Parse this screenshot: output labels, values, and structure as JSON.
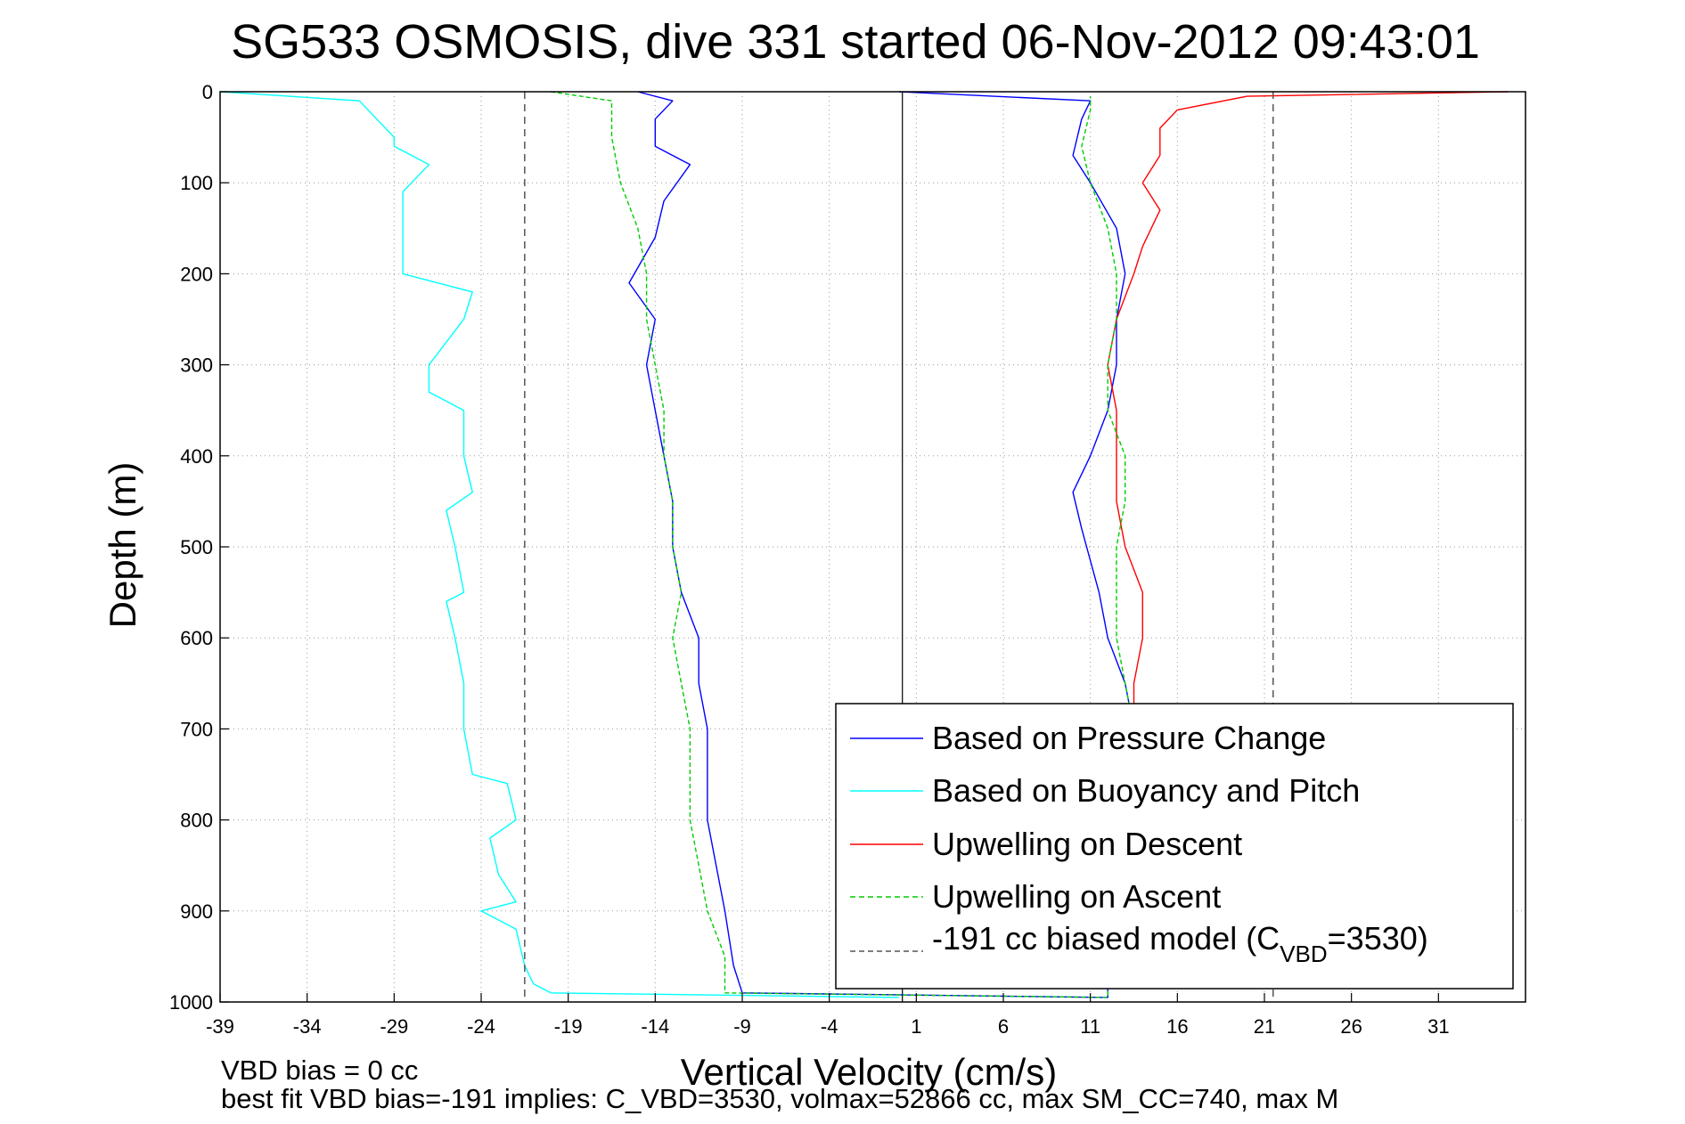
{
  "chart_data": {
    "type": "line",
    "title": "SG533 OSMOSIS, dive 331 started 06-Nov-2012 09:43:01",
    "xlabel": "Vertical Velocity (cm/s)",
    "ylabel": "Depth (m)",
    "xlim": [
      -39,
      36
    ],
    "ylim": [
      0,
      1000
    ],
    "y_reversed": true,
    "grid": true,
    "x_ticks": [
      "-39",
      "-34",
      "-29",
      "-24",
      "-19",
      "-14",
      "-9",
      "-4",
      "1",
      "6",
      "11",
      "16",
      "21",
      "26",
      "31"
    ],
    "y_ticks": [
      "0",
      "100",
      "200",
      "300",
      "400",
      "500",
      "600",
      "700",
      "800",
      "900",
      "1000"
    ],
    "legend_position": "bottom-right",
    "series": [
      {
        "name": "Based on Pressure Change",
        "color": "#0000ff",
        "style": "solid",
        "points": [
          {
            "x": -15,
            "y": 0
          },
          {
            "x": -13,
            "y": 10
          },
          {
            "x": -14,
            "y": 30
          },
          {
            "x": -14,
            "y": 60
          },
          {
            "x": -12,
            "y": 80
          },
          {
            "x": -13.5,
            "y": 120
          },
          {
            "x": -14,
            "y": 160
          },
          {
            "x": -15.5,
            "y": 210
          },
          {
            "x": -14,
            "y": 250
          },
          {
            "x": -14.5,
            "y": 300
          },
          {
            "x": -14,
            "y": 350
          },
          {
            "x": -13.5,
            "y": 400
          },
          {
            "x": -13,
            "y": 450
          },
          {
            "x": -13,
            "y": 500
          },
          {
            "x": -12.5,
            "y": 550
          },
          {
            "x": -11.5,
            "y": 600
          },
          {
            "x": -11.5,
            "y": 650
          },
          {
            "x": -11,
            "y": 700
          },
          {
            "x": -11,
            "y": 750
          },
          {
            "x": -11,
            "y": 800
          },
          {
            "x": -10.5,
            "y": 850
          },
          {
            "x": -10,
            "y": 900
          },
          {
            "x": -9.5,
            "y": 960
          },
          {
            "x": -9,
            "y": 990
          },
          {
            "x": 12,
            "y": 995
          },
          {
            "x": 12,
            "y": 985
          },
          {
            "x": 10.5,
            "y": 940
          },
          {
            "x": 12,
            "y": 900
          },
          {
            "x": 12.5,
            "y": 850
          },
          {
            "x": 13,
            "y": 800
          },
          {
            "x": 13.5,
            "y": 750
          },
          {
            "x": 13.5,
            "y": 700
          },
          {
            "x": 13,
            "y": 650
          },
          {
            "x": 12,
            "y": 600
          },
          {
            "x": 11.5,
            "y": 550
          },
          {
            "x": 10.5,
            "y": 480
          },
          {
            "x": 10,
            "y": 440
          },
          {
            "x": 11,
            "y": 400
          },
          {
            "x": 12,
            "y": 350
          },
          {
            "x": 12.5,
            "y": 300
          },
          {
            "x": 12.5,
            "y": 250
          },
          {
            "x": 13,
            "y": 200
          },
          {
            "x": 12.5,
            "y": 150
          },
          {
            "x": 11,
            "y": 100
          },
          {
            "x": 10,
            "y": 70
          },
          {
            "x": 10.5,
            "y": 30
          },
          {
            "x": 11,
            "y": 10
          },
          {
            "x": 0,
            "y": 0
          }
        ]
      },
      {
        "name": "Based on Buoyancy and Pitch",
        "color": "#00ffff",
        "style": "solid",
        "points": [
          {
            "x": -39,
            "y": 0
          },
          {
            "x": -31,
            "y": 10
          },
          {
            "x": -30,
            "y": 30
          },
          {
            "x": -29,
            "y": 50
          },
          {
            "x": -29,
            "y": 60
          },
          {
            "x": -27,
            "y": 80
          },
          {
            "x": -28.5,
            "y": 110
          },
          {
            "x": -28.5,
            "y": 150
          },
          {
            "x": -28.5,
            "y": 200
          },
          {
            "x": -24.5,
            "y": 220
          },
          {
            "x": -25,
            "y": 250
          },
          {
            "x": -27,
            "y": 300
          },
          {
            "x": -27,
            "y": 330
          },
          {
            "x": -25,
            "y": 350
          },
          {
            "x": -25,
            "y": 400
          },
          {
            "x": -24.5,
            "y": 440
          },
          {
            "x": -26,
            "y": 460
          },
          {
            "x": -25.5,
            "y": 500
          },
          {
            "x": -25,
            "y": 550
          },
          {
            "x": -26,
            "y": 560
          },
          {
            "x": -25.5,
            "y": 600
          },
          {
            "x": -25,
            "y": 650
          },
          {
            "x": -25,
            "y": 700
          },
          {
            "x": -24.5,
            "y": 750
          },
          {
            "x": -22.5,
            "y": 760
          },
          {
            "x": -22,
            "y": 800
          },
          {
            "x": -23.5,
            "y": 820
          },
          {
            "x": -23,
            "y": 860
          },
          {
            "x": -22,
            "y": 890
          },
          {
            "x": -24,
            "y": 900
          },
          {
            "x": -22,
            "y": 920
          },
          {
            "x": -21.5,
            "y": 960
          },
          {
            "x": -21,
            "y": 980
          },
          {
            "x": -20,
            "y": 990
          },
          {
            "x": 0,
            "y": 995
          }
        ]
      },
      {
        "name": "Upwelling on Descent",
        "color": "#ff0000",
        "style": "solid",
        "points": [
          {
            "x": 35,
            "y": 0
          },
          {
            "x": 20,
            "y": 5
          },
          {
            "x": 16,
            "y": 20
          },
          {
            "x": 15,
            "y": 40
          },
          {
            "x": 15,
            "y": 70
          },
          {
            "x": 14,
            "y": 100
          },
          {
            "x": 15,
            "y": 130
          },
          {
            "x": 14,
            "y": 170
          },
          {
            "x": 13.5,
            "y": 200
          },
          {
            "x": 12.5,
            "y": 250
          },
          {
            "x": 12,
            "y": 300
          },
          {
            "x": 12.5,
            "y": 350
          },
          {
            "x": 12.5,
            "y": 400
          },
          {
            "x": 12.5,
            "y": 450
          },
          {
            "x": 13,
            "y": 500
          },
          {
            "x": 14,
            "y": 550
          },
          {
            "x": 14,
            "y": 600
          },
          {
            "x": 13.5,
            "y": 650
          },
          {
            "x": 13.5,
            "y": 675
          }
        ]
      },
      {
        "name": "Upwelling on Ascent",
        "color": "#00cc00",
        "style": "dashed",
        "points": [
          {
            "x": -20,
            "y": 0
          },
          {
            "x": -16.5,
            "y": 10
          },
          {
            "x": -16.5,
            "y": 50
          },
          {
            "x": -16,
            "y": 100
          },
          {
            "x": -15,
            "y": 150
          },
          {
            "x": -14.5,
            "y": 200
          },
          {
            "x": -14.5,
            "y": 250
          },
          {
            "x": -14,
            "y": 300
          },
          {
            "x": -13.5,
            "y": 350
          },
          {
            "x": -13.5,
            "y": 400
          },
          {
            "x": -13,
            "y": 450
          },
          {
            "x": -13,
            "y": 500
          },
          {
            "x": -12.5,
            "y": 550
          },
          {
            "x": -13,
            "y": 600
          },
          {
            "x": -12.5,
            "y": 650
          },
          {
            "x": -12,
            "y": 700
          },
          {
            "x": -12,
            "y": 760
          },
          {
            "x": -12,
            "y": 800
          },
          {
            "x": -11.5,
            "y": 850
          },
          {
            "x": -11,
            "y": 900
          },
          {
            "x": -10,
            "y": 950
          },
          {
            "x": -10,
            "y": 990
          },
          {
            "x": 12,
            "y": 995
          },
          {
            "x": 12,
            "y": 960
          },
          {
            "x": 12.5,
            "y": 900
          },
          {
            "x": 13,
            "y": 850
          },
          {
            "x": 13.5,
            "y": 800
          },
          {
            "x": 13.5,
            "y": 750
          },
          {
            "x": 13.5,
            "y": 700
          },
          {
            "x": 13,
            "y": 650
          },
          {
            "x": 12.5,
            "y": 600
          },
          {
            "x": 12.5,
            "y": 550
          },
          {
            "x": 12.5,
            "y": 500
          },
          {
            "x": 13,
            "y": 450
          },
          {
            "x": 13,
            "y": 400
          },
          {
            "x": 12,
            "y": 350
          },
          {
            "x": 12,
            "y": 300
          },
          {
            "x": 12.5,
            "y": 250
          },
          {
            "x": 12.5,
            "y": 200
          },
          {
            "x": 12,
            "y": 150
          },
          {
            "x": 11,
            "y": 100
          },
          {
            "x": 10.5,
            "y": 60
          },
          {
            "x": 11,
            "y": 20
          },
          {
            "x": 11,
            "y": 5
          }
        ]
      },
      {
        "name": "-191 cc biased model (C",
        "name_sub": "VBD",
        "name_suffix": "=3530)",
        "color": "#555555",
        "style": "dashed",
        "vertical_lines_x": [
          -21.5,
          21.5
        ]
      }
    ],
    "zero_line_x": 0.2,
    "footer": {
      "line1": "VBD bias = 0 cc",
      "line2": "best fit VBD bias=-191 implies: C_VBD=3530, volmax=52866 cc, max SM_CC=740, max M"
    }
  }
}
